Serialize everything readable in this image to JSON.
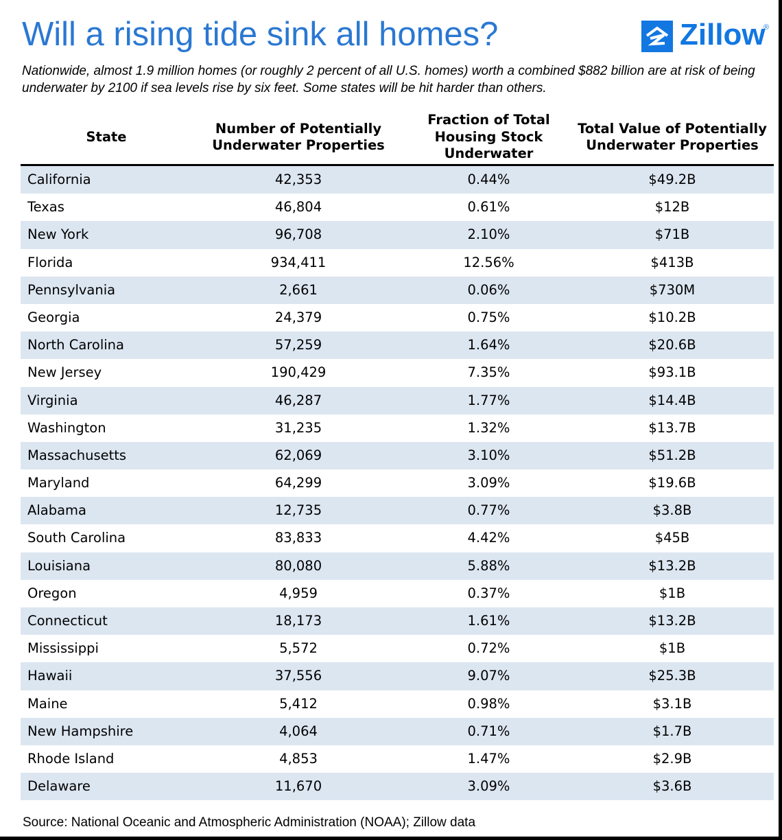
{
  "title": "Will a rising tide sink all homes?",
  "logo": {
    "text": "Zillow",
    "mark": "®",
    "icon": "zillow-house-icon",
    "color": "#1277e1"
  },
  "subtitle": "Nationwide, almost 1.9 million homes (or roughly 2 percent of all U.S. homes) worth a combined $882 billion are at risk of being underwater by 2100 if sea levels rise by six feet. Some states will be hit harder than others.",
  "source": "Source: National Oceanic and Atmospheric Administration (NOAA); Zillow data",
  "colors": {
    "title": "#2a78d2",
    "row_shade": "#dce6f1"
  },
  "chart_data": {
    "type": "table",
    "columns": [
      "State",
      "Number of Potentially Underwater Properties",
      "Fraction of Total Housing Stock Underwater",
      "Total Value of Potentially Underwater Properties"
    ],
    "rows": [
      [
        "California",
        "42,353",
        "0.44%",
        "$49.2B"
      ],
      [
        "Texas",
        "46,804",
        "0.61%",
        "$12B"
      ],
      [
        "New York",
        "96,708",
        "2.10%",
        "$71B"
      ],
      [
        "Florida",
        "934,411",
        "12.56%",
        "$413B"
      ],
      [
        "Pennsylvania",
        "2,661",
        "0.06%",
        "$730M"
      ],
      [
        "Georgia",
        "24,379",
        "0.75%",
        "$10.2B"
      ],
      [
        "North Carolina",
        "57,259",
        "1.64%",
        "$20.6B"
      ],
      [
        "New Jersey",
        "190,429",
        "7.35%",
        "$93.1B"
      ],
      [
        "Virginia",
        "46,287",
        "1.77%",
        "$14.4B"
      ],
      [
        "Washington",
        "31,235",
        "1.32%",
        "$13.7B"
      ],
      [
        "Massachusetts",
        "62,069",
        "3.10%",
        "$51.2B"
      ],
      [
        "Maryland",
        "64,299",
        "3.09%",
        "$19.6B"
      ],
      [
        "Alabama",
        "12,735",
        "0.77%",
        "$3.8B"
      ],
      [
        "South Carolina",
        "83,833",
        "4.42%",
        "$45B"
      ],
      [
        "Louisiana",
        "80,080",
        "5.88%",
        "$13.2B"
      ],
      [
        "Oregon",
        "4,959",
        "0.37%",
        "$1B"
      ],
      [
        "Connecticut",
        "18,173",
        "1.61%",
        "$13.2B"
      ],
      [
        "Mississippi",
        "5,572",
        "0.72%",
        "$1B"
      ],
      [
        "Hawaii",
        "37,556",
        "9.07%",
        "$25.3B"
      ],
      [
        "Maine",
        "5,412",
        "0.98%",
        "$3.1B"
      ],
      [
        "New Hampshire",
        "4,064",
        "0.71%",
        "$1.7B"
      ],
      [
        "Rhode Island",
        "4,853",
        "1.47%",
        "$2.9B"
      ],
      [
        "Delaware",
        "11,670",
        "3.09%",
        "$3.6B"
      ]
    ]
  }
}
